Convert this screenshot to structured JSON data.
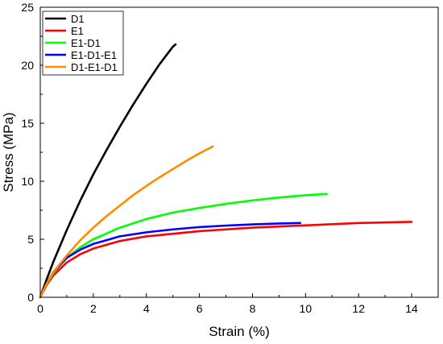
{
  "chart_data": {
    "type": "line",
    "xlabel": "Strain (%)",
    "ylabel": "Stress (MPa)",
    "xlim": [
      0,
      15
    ],
    "ylim": [
      0,
      25
    ],
    "xticks": [
      0,
      2,
      4,
      6,
      8,
      10,
      12,
      14
    ],
    "yticks": [
      0,
      5,
      10,
      15,
      20,
      25
    ],
    "grid": false,
    "legend_position": "top-left",
    "series": [
      {
        "name": "D1",
        "color": "#000000",
        "x": [
          0,
          0.25,
          0.5,
          1.0,
          1.5,
          2.0,
          2.5,
          3.0,
          3.5,
          4.0,
          4.5,
          5.0,
          5.1
        ],
        "y": [
          0,
          1.6,
          3.1,
          5.8,
          8.3,
          10.6,
          12.7,
          14.7,
          16.6,
          18.4,
          20.1,
          21.6,
          21.8
        ]
      },
      {
        "name": "E1",
        "color": "#ff0000",
        "x": [
          0,
          0.25,
          0.5,
          1.0,
          1.5,
          2.0,
          3.0,
          4.0,
          6.0,
          8.0,
          10.0,
          12.0,
          14.0
        ],
        "y": [
          0,
          1.1,
          1.9,
          3.0,
          3.7,
          4.2,
          4.85,
          5.25,
          5.7,
          6.0,
          6.2,
          6.4,
          6.5
        ]
      },
      {
        "name": "E1-D1",
        "color": "#00ff00",
        "x": [
          0,
          0.25,
          0.5,
          1.0,
          1.5,
          2.0,
          3.0,
          4.0,
          5.0,
          6.0,
          7.0,
          8.0,
          9.0,
          10.0,
          10.8
        ],
        "y": [
          0,
          1.2,
          2.1,
          3.4,
          4.3,
          5.0,
          6.0,
          6.75,
          7.3,
          7.7,
          8.05,
          8.35,
          8.6,
          8.8,
          8.9
        ]
      },
      {
        "name": "E1-D1-E1",
        "color": "#0000ff",
        "x": [
          0,
          0.25,
          0.5,
          1.0,
          1.5,
          2.0,
          3.0,
          4.0,
          5.0,
          6.0,
          7.0,
          8.0,
          9.0,
          9.8
        ],
        "y": [
          0,
          1.2,
          2.2,
          3.4,
          4.1,
          4.6,
          5.25,
          5.6,
          5.85,
          6.05,
          6.18,
          6.28,
          6.36,
          6.4
        ]
      },
      {
        "name": "D1-E1-D1",
        "color": "#ff8c00",
        "x": [
          0,
          0.25,
          0.5,
          1.0,
          1.5,
          2.0,
          2.5,
          3.0,
          3.5,
          4.0,
          4.5,
          5.0,
          5.5,
          6.0,
          6.5
        ],
        "y": [
          0,
          1.2,
          2.2,
          3.6,
          4.9,
          6.0,
          7.0,
          7.9,
          8.8,
          9.6,
          10.35,
          11.05,
          11.75,
          12.4,
          13.0
        ]
      }
    ]
  }
}
